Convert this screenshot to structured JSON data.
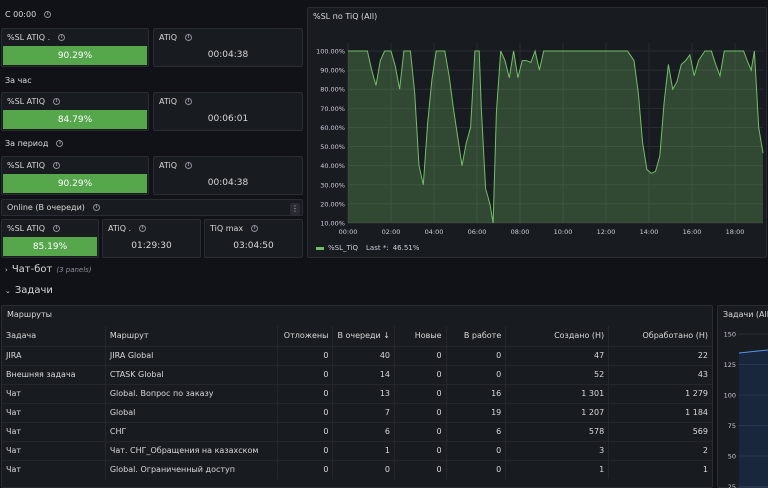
{
  "rows": {
    "since_midnight": "С 00:00",
    "last_hour": "За час",
    "period": "За период"
  },
  "stats": {
    "sl1": {
      "title": "%SL ATIQ .",
      "value": "90.29%",
      "fill": 0.9029
    },
    "atiq1": {
      "title": "ATiQ",
      "value": "00:04:38"
    },
    "sl2": {
      "title": "%SL ATIQ",
      "value": "84.79%",
      "fill": 0.8479
    },
    "atiq2": {
      "title": "ATiQ",
      "value": "00:06:01"
    },
    "sl3": {
      "title": "%SL ATIQ",
      "value": "90.29%",
      "fill": 0.9029
    },
    "atiq3": {
      "title": "ATiQ",
      "value": "00:04:38"
    }
  },
  "online": {
    "title": "Online (В очереди)",
    "sl": {
      "title": "%SL ATIQ",
      "value": "85.19%",
      "fill": 0.8519
    },
    "atiq": {
      "title": "ATiQ .",
      "value": "01:29:30"
    },
    "tiq": {
      "title": "TiQ max",
      "value": "03:04:50"
    }
  },
  "chart_data": {
    "type": "area",
    "title": "%SL по TiQ (All)",
    "yticks": [
      "100.00%",
      "90.00%",
      "80.00%",
      "70.00%",
      "60.00%",
      "50.00%",
      "40.00%",
      "30.00%",
      "20.00%",
      "10.00%"
    ],
    "xticks": [
      "00:00",
      "02:00",
      "04:00",
      "06:00",
      "08:00",
      "10:00",
      "12:00",
      "14:00",
      "16:00",
      "18:00"
    ],
    "ylim": [
      10,
      100
    ],
    "xlim": [
      0,
      19.3
    ],
    "color": "#73bf69",
    "legend": {
      "name": "%SL_TiQ",
      "last_label": "Last *:",
      "last_value": "46.51%"
    },
    "points": [
      [
        0.0,
        100
      ],
      [
        0.5,
        100
      ],
      [
        0.9,
        100
      ],
      [
        1.1,
        90
      ],
      [
        1.3,
        82
      ],
      [
        1.5,
        95
      ],
      [
        1.7,
        100
      ],
      [
        2.0,
        100
      ],
      [
        2.2,
        92
      ],
      [
        2.4,
        80
      ],
      [
        2.6,
        100
      ],
      [
        2.9,
        100
      ],
      [
        3.1,
        78
      ],
      [
        3.3,
        40
      ],
      [
        3.5,
        30
      ],
      [
        3.7,
        62
      ],
      [
        3.9,
        85
      ],
      [
        4.1,
        100
      ],
      [
        4.5,
        100
      ],
      [
        4.7,
        87
      ],
      [
        4.9,
        70
      ],
      [
        5.1,
        55
      ],
      [
        5.3,
        40
      ],
      [
        5.5,
        52
      ],
      [
        5.7,
        60
      ],
      [
        5.9,
        100
      ],
      [
        6.1,
        100
      ],
      [
        6.2,
        70
      ],
      [
        6.4,
        28
      ],
      [
        6.6,
        20
      ],
      [
        6.75,
        10
      ],
      [
        6.9,
        68
      ],
      [
        7.1,
        100
      ],
      [
        7.3,
        95
      ],
      [
        7.5,
        86
      ],
      [
        7.7,
        100
      ],
      [
        7.9,
        86
      ],
      [
        8.1,
        95
      ],
      [
        8.3,
        95
      ],
      [
        8.5,
        94
      ],
      [
        8.7,
        100
      ],
      [
        8.9,
        90
      ],
      [
        9.1,
        100
      ],
      [
        9.6,
        100
      ],
      [
        10.0,
        100
      ],
      [
        12.0,
        100
      ],
      [
        13.0,
        100
      ],
      [
        13.3,
        95
      ],
      [
        13.5,
        78
      ],
      [
        13.7,
        52
      ],
      [
        13.9,
        38
      ],
      [
        14.1,
        36
      ],
      [
        14.3,
        37
      ],
      [
        14.5,
        45
      ],
      [
        14.7,
        73
      ],
      [
        14.9,
        93
      ],
      [
        15.1,
        80
      ],
      [
        15.3,
        84
      ],
      [
        15.5,
        93
      ],
      [
        15.7,
        95
      ],
      [
        15.9,
        98
      ],
      [
        16.1,
        87
      ],
      [
        16.3,
        95
      ],
      [
        16.6,
        100
      ],
      [
        16.9,
        100
      ],
      [
        17.1,
        93
      ],
      [
        17.3,
        87
      ],
      [
        17.5,
        100
      ],
      [
        18.0,
        100
      ],
      [
        18.4,
        100
      ],
      [
        18.6,
        94
      ],
      [
        18.75,
        90
      ],
      [
        18.9,
        100
      ],
      [
        19.1,
        60
      ],
      [
        19.3,
        46.51
      ]
    ]
  },
  "sections": {
    "chatbot": "Чат-бот",
    "chatbot_note": "(3 panels)",
    "tasks": "Задачи"
  },
  "routes": {
    "title": "Маршруты",
    "columns": [
      "Задача",
      "Маршрут",
      "Отложены",
      "В очереди ↓",
      "Новые",
      "В работе",
      "Создано (Н)",
      "Обработано (Н)"
    ],
    "rows": [
      [
        "JIRA",
        "JIRA Global",
        "0",
        "40",
        "0",
        "0",
        "47",
        "22"
      ],
      [
        "Внешняя задача",
        "CTASK Global",
        "0",
        "14",
        "0",
        "0",
        "52",
        "43"
      ],
      [
        "Чат",
        "Global. Вопрос по заказу",
        "0",
        "13",
        "0",
        "16",
        "1 301",
        "1 279"
      ],
      [
        "Чат",
        "Global",
        "0",
        "7",
        "0",
        "19",
        "1 207",
        "1 184"
      ],
      [
        "Чат",
        "СНГ",
        "0",
        "6",
        "0",
        "6",
        "578",
        "569"
      ],
      [
        "Чат",
        "Чат. СНГ_Обращения на казахском",
        "0",
        "1",
        "0",
        "0",
        "3",
        "2"
      ],
      [
        "Чат",
        "Global. Ограниченный доступ",
        "0",
        "0",
        "0",
        "0",
        "1",
        "1"
      ]
    ]
  },
  "tasks_panel": {
    "title": "Задачи (All)",
    "yticks": [
      "150",
      "125",
      "100",
      "75",
      "50",
      "25"
    ]
  }
}
